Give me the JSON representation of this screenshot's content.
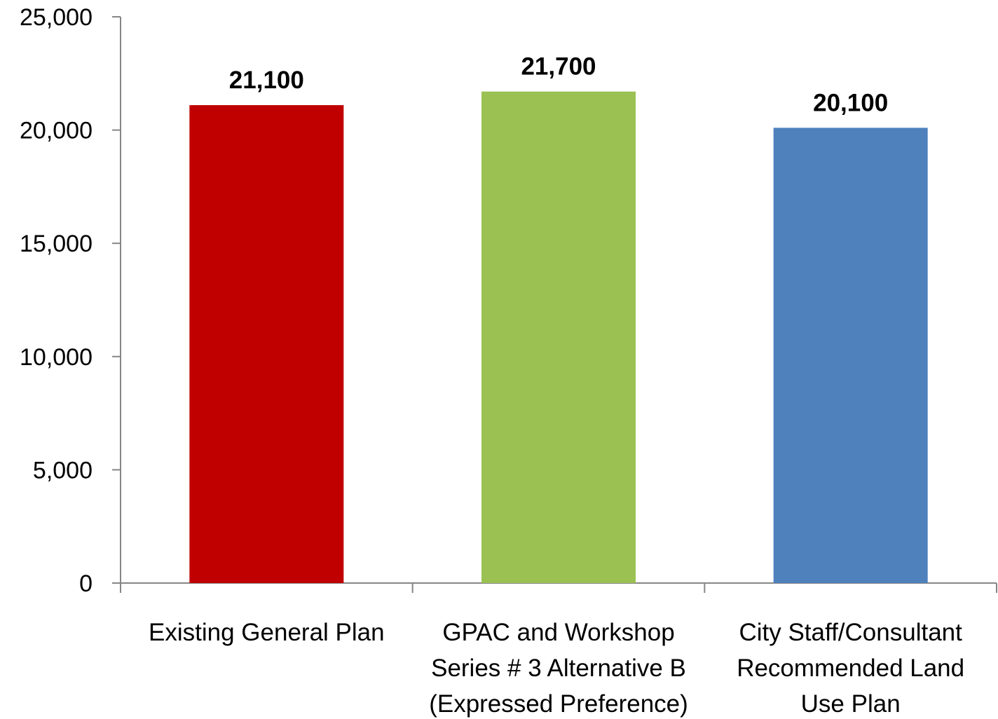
{
  "chart_data": {
    "type": "bar",
    "categories": [
      [
        "Existing General Plan"
      ],
      [
        "GPAC and Workshop",
        "Series # 3 Alternative B",
        "(Expressed Preference)"
      ],
      [
        "City Staff/Consultant",
        "Recommended Land",
        "Use Plan"
      ]
    ],
    "values": [
      21100,
      21700,
      20100
    ],
    "data_labels": [
      "21,100",
      "21,700",
      "20,100"
    ],
    "bar_colors": [
      "#c00000",
      "#9bc152",
      "#4f81bd"
    ],
    "ylim": [
      0,
      25000
    ],
    "yticks": [
      0,
      5000,
      10000,
      15000,
      20000,
      25000
    ],
    "ytick_labels": [
      "0",
      "5,000",
      "10,000",
      "15,000",
      "20,000",
      "25,000"
    ],
    "title": "",
    "xlabel": "",
    "ylabel": "",
    "grid": false,
    "legend": false,
    "axis_color": "#868686"
  }
}
